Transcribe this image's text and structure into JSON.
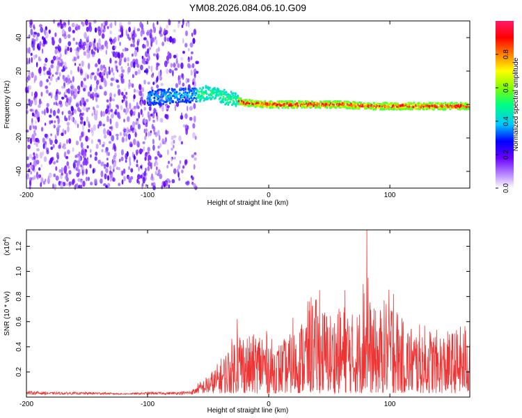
{
  "chart_data": [
    {
      "type": "heatmap",
      "title": "YM08.2026.084.06.10.G09",
      "xlabel": "Height of straight line (km)",
      "ylabel": "Frequency (Hz)",
      "xlim": [
        -200,
        166
      ],
      "ylim": [
        -50,
        50
      ],
      "xticks": [
        -200,
        -100,
        0,
        100
      ],
      "yticks": [
        -40,
        -20,
        0,
        20,
        40
      ],
      "colorbar": {
        "label": "Normalized spectral amplitude",
        "range": [
          0.0,
          1.0
        ],
        "ticks": [
          0.0,
          0.2,
          0.4,
          0.6,
          0.8
        ],
        "colormap": [
          "#ffffff",
          "#7f00ff",
          "#0000ff",
          "#00c8ff",
          "#00ff00",
          "#ffff00",
          "#ff7f00",
          "#ff0000",
          "#ff0080"
        ]
      },
      "regions": [
        {
          "x": [
            -200,
            -58
          ],
          "freq": [
            -50,
            50
          ],
          "level": 0.1,
          "description_level": "noise"
        },
        {
          "x": [
            -104,
            -58
          ],
          "freq": [
            -2,
            12
          ],
          "level": 0.35
        },
        {
          "x": [
            -58,
            -25
          ],
          "freq": [
            -3,
            14
          ],
          "level": 0.45
        },
        {
          "x": [
            -25,
            166
          ],
          "freq": [
            -3,
            3
          ],
          "level": 0.75
        }
      ],
      "signal_track": [
        [
          -100,
          4
        ],
        [
          -80,
          5
        ],
        [
          -60,
          6
        ],
        [
          -50,
          7
        ],
        [
          -40,
          5
        ],
        [
          -30,
          3
        ],
        [
          -20,
          1
        ],
        [
          -10,
          0.5
        ],
        [
          0,
          0
        ],
        [
          20,
          0
        ],
        [
          40,
          0
        ],
        [
          60,
          0
        ],
        [
          80,
          -1
        ],
        [
          100,
          -1
        ],
        [
          120,
          -1
        ],
        [
          140,
          -1
        ],
        [
          160,
          -1
        ]
      ]
    },
    {
      "type": "line",
      "xlabel": "Height of straight line (km)",
      "ylabel": "SNR (10 * v/v)",
      "yscale_label": "(x10",
      "yscale_exp": "4",
      "xlim": [
        -200,
        166
      ],
      "ylim": [
        0,
        1.33
      ],
      "xticks": [
        -200,
        -100,
        0,
        100
      ],
      "yticks": [
        0.2,
        0.4,
        0.6,
        0.8,
        1.0,
        1.2
      ],
      "ytick_labels": [
        "0.2",
        "0.4",
        "0.6",
        "0.8",
        "1.0",
        "1.2"
      ],
      "color": "#ee3333",
      "envelope": [
        [
          -200,
          0.05
        ],
        [
          -180,
          0.04
        ],
        [
          -160,
          0.04
        ],
        [
          -140,
          0.04
        ],
        [
          -120,
          0.03
        ],
        [
          -100,
          0.04
        ],
        [
          -80,
          0.04
        ],
        [
          -65,
          0.05
        ],
        [
          -55,
          0.1
        ],
        [
          -45,
          0.2
        ],
        [
          -35,
          0.35
        ],
        [
          -25,
          0.55
        ],
        [
          -15,
          0.45
        ],
        [
          -5,
          0.55
        ],
        [
          5,
          0.4
        ],
        [
          15,
          0.45
        ],
        [
          25,
          0.55
        ],
        [
          35,
          0.8
        ],
        [
          45,
          0.7
        ],
        [
          55,
          0.65
        ],
        [
          65,
          0.75
        ],
        [
          70,
          0.62
        ],
        [
          75,
          0.7
        ],
        [
          80,
          0.95
        ],
        [
          85,
          0.7
        ],
        [
          90,
          0.65
        ],
        [
          100,
          0.85
        ],
        [
          110,
          0.6
        ],
        [
          120,
          0.55
        ],
        [
          130,
          0.55
        ],
        [
          140,
          0.5
        ],
        [
          150,
          0.5
        ],
        [
          160,
          0.55
        ],
        [
          166,
          0.6
        ]
      ],
      "peaks": [
        [
          -26,
          0.62
        ],
        [
          36,
          0.72
        ],
        [
          42,
          0.85
        ],
        [
          63,
          0.85
        ],
        [
          78,
          0.9
        ],
        [
          81,
          1.33
        ],
        [
          82,
          0.95
        ],
        [
          103,
          0.82
        ],
        [
          57,
          0.66
        ],
        [
          20,
          0.63
        ]
      ]
    }
  ]
}
